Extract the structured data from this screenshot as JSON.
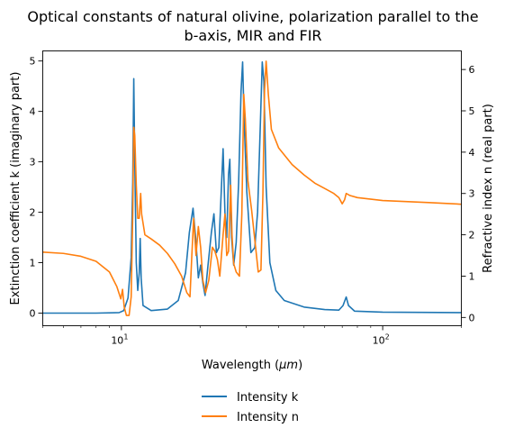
{
  "chart_data": {
    "type": "line",
    "title_line1": "Optical constants of natural olivine, polarization parallel to the",
    "title_line2": "b-axis, MIR and FIR",
    "xlabel_main": "Wavelength (",
    "xlabel_unit": "μm",
    "xlabel_close": ")",
    "ylabel_left": "Extinction coefficient k (imaginary part)",
    "ylabel_right": "Refractive index n (real part)",
    "x_scale": "log",
    "xlim": [
      5,
      200
    ],
    "ylim_left": [
      -0.25,
      5.2
    ],
    "ylim_right": [
      -0.2,
      6.45
    ],
    "x_ticks": [
      {
        "value": 10,
        "base": "10",
        "exp": "1"
      },
      {
        "value": 100,
        "base": "10",
        "exp": "2"
      }
    ],
    "y_ticks_left": [
      "0",
      "1",
      "2",
      "3",
      "4",
      "5"
    ],
    "y_ticks_right": [
      "0",
      "1",
      "2",
      "3",
      "4",
      "5",
      "6"
    ],
    "legend_position": "below",
    "series": [
      {
        "name": "Intensity k",
        "axis": "left",
        "color": "#1f77b4",
        "points": [
          [
            5,
            0.0
          ],
          [
            8,
            0.0
          ],
          [
            9.8,
            0.01
          ],
          [
            10.2,
            0.05
          ],
          [
            10.6,
            0.3
          ],
          [
            10.9,
            1.1
          ],
          [
            11.05,
            2.6
          ],
          [
            11.15,
            4.65
          ],
          [
            11.25,
            3.0
          ],
          [
            11.4,
            1.0
          ],
          [
            11.55,
            0.45
          ],
          [
            11.7,
            0.8
          ],
          [
            11.8,
            1.48
          ],
          [
            11.9,
            0.7
          ],
          [
            12.1,
            0.15
          ],
          [
            13,
            0.05
          ],
          [
            15,
            0.08
          ],
          [
            16.5,
            0.25
          ],
          [
            17.6,
            0.8
          ],
          [
            18.2,
            1.6
          ],
          [
            18.8,
            2.08
          ],
          [
            19.3,
            1.4
          ],
          [
            19.7,
            0.7
          ],
          [
            20.1,
            0.95
          ],
          [
            20.5,
            0.6
          ],
          [
            20.9,
            0.35
          ],
          [
            21.4,
            0.9
          ],
          [
            22.1,
            1.6
          ],
          [
            22.6,
            1.97
          ],
          [
            23.1,
            1.2
          ],
          [
            23.6,
            1.3
          ],
          [
            24.1,
            2.4
          ],
          [
            24.5,
            3.26
          ],
          [
            24.9,
            2.0
          ],
          [
            25.3,
            1.5
          ],
          [
            25.7,
            2.75
          ],
          [
            26.0,
            3.05
          ],
          [
            26.4,
            1.5
          ],
          [
            26.9,
            0.95
          ],
          [
            27.5,
            1.4
          ],
          [
            28.1,
            2.6
          ],
          [
            28.7,
            4.4
          ],
          [
            29.1,
            4.98
          ],
          [
            29.5,
            3.8
          ],
          [
            30.2,
            2.4
          ],
          [
            31.3,
            1.2
          ],
          [
            32.4,
            1.3
          ],
          [
            33.2,
            2.0
          ],
          [
            34.0,
            3.7
          ],
          [
            34.6,
            4.98
          ],
          [
            35.1,
            4.6
          ],
          [
            35.8,
            2.5
          ],
          [
            37,
            1.0
          ],
          [
            39,
            0.45
          ],
          [
            42,
            0.25
          ],
          [
            50,
            0.12
          ],
          [
            60,
            0.07
          ],
          [
            68,
            0.06
          ],
          [
            70.5,
            0.15
          ],
          [
            72.5,
            0.32
          ],
          [
            74,
            0.15
          ],
          [
            78,
            0.04
          ],
          [
            100,
            0.02
          ],
          [
            200,
            0.01
          ]
        ]
      },
      {
        "name": "Intensity n",
        "axis": "right",
        "color": "#ff7f0e",
        "points": [
          [
            5,
            1.58
          ],
          [
            6,
            1.55
          ],
          [
            7,
            1.48
          ],
          [
            8,
            1.36
          ],
          [
            9,
            1.1
          ],
          [
            9.6,
            0.75
          ],
          [
            9.95,
            0.45
          ],
          [
            10.1,
            0.68
          ],
          [
            10.25,
            0.25
          ],
          [
            10.45,
            0.05
          ],
          [
            10.7,
            0.05
          ],
          [
            10.9,
            0.5
          ],
          [
            11.05,
            2.5
          ],
          [
            11.15,
            4.6
          ],
          [
            11.25,
            4.4
          ],
          [
            11.4,
            3.2
          ],
          [
            11.55,
            2.4
          ],
          [
            11.7,
            2.4
          ],
          [
            11.85,
            3.0
          ],
          [
            11.95,
            2.5
          ],
          [
            12.3,
            2.0
          ],
          [
            13,
            1.9
          ],
          [
            14,
            1.75
          ],
          [
            15,
            1.55
          ],
          [
            16,
            1.3
          ],
          [
            17,
            1.0
          ],
          [
            17.8,
            0.6
          ],
          [
            18.3,
            0.5
          ],
          [
            18.6,
            1.5
          ],
          [
            18.9,
            2.4
          ],
          [
            19.3,
            1.5
          ],
          [
            19.7,
            2.2
          ],
          [
            20.1,
            1.7
          ],
          [
            20.5,
            0.9
          ],
          [
            21,
            0.6
          ],
          [
            21.6,
            0.9
          ],
          [
            22.3,
            1.7
          ],
          [
            22.8,
            1.6
          ],
          [
            23.3,
            1.4
          ],
          [
            23.8,
            1.0
          ],
          [
            24.5,
            2.0
          ],
          [
            24.9,
            2.5
          ],
          [
            25.3,
            1.5
          ],
          [
            25.7,
            1.6
          ],
          [
            26.2,
            3.2
          ],
          [
            26.5,
            2.0
          ],
          [
            26.9,
            1.3
          ],
          [
            27.5,
            1.1
          ],
          [
            28.3,
            1.0
          ],
          [
            28.9,
            2.5
          ],
          [
            29.4,
            5.4
          ],
          [
            29.8,
            4.8
          ],
          [
            30.5,
            3.3
          ],
          [
            31.5,
            2.6
          ],
          [
            32.5,
            1.8
          ],
          [
            33.4,
            1.1
          ],
          [
            34.2,
            1.15
          ],
          [
            34.8,
            3.0
          ],
          [
            35.3,
            5.5
          ],
          [
            35.8,
            6.2
          ],
          [
            36.5,
            5.4
          ],
          [
            37.5,
            4.55
          ],
          [
            40,
            4.1
          ],
          [
            45,
            3.7
          ],
          [
            50,
            3.45
          ],
          [
            55,
            3.25
          ],
          [
            60,
            3.12
          ],
          [
            65,
            3.0
          ],
          [
            68,
            2.9
          ],
          [
            70,
            2.75
          ],
          [
            71.5,
            2.85
          ],
          [
            72.5,
            3.0
          ],
          [
            75,
            2.95
          ],
          [
            80,
            2.9
          ],
          [
            100,
            2.83
          ],
          [
            150,
            2.78
          ],
          [
            200,
            2.74
          ]
        ]
      }
    ]
  },
  "legend": {
    "k_label": "Intensity k",
    "n_label": "Intensity n"
  },
  "colors": {
    "k": "#1f77b4",
    "n": "#ff7f0e"
  }
}
